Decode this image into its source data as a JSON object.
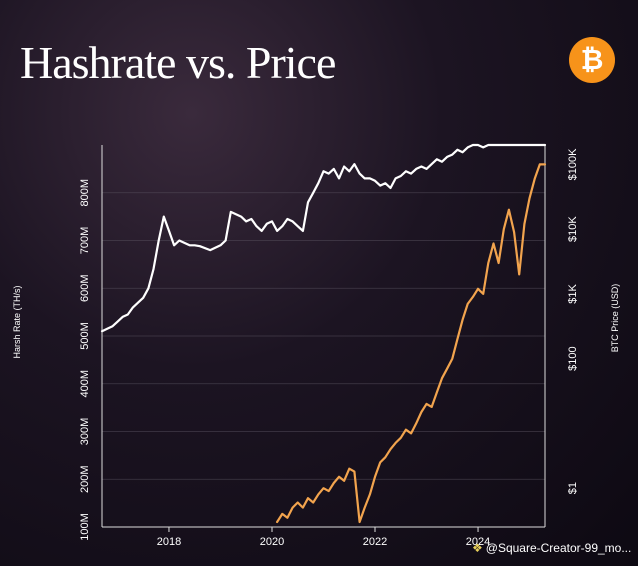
{
  "title": "Hashrate vs. Price",
  "colors": {
    "hashrate": "#ffffff",
    "price": "#f2a44e",
    "logo": "#f7931a",
    "grid": "#5b5563"
  },
  "watermark": "@Square-Creator-99_mo...",
  "chart_data": {
    "type": "line",
    "title": "Hashrate vs. Price",
    "ylabel": "Harsh Rate (TH/s)",
    "y2label": "BTC Price (USD)",
    "x_ticks": [
      "2018",
      "2020",
      "2022",
      "2024"
    ],
    "y_ticks": [
      "100M",
      "200M",
      "300M",
      "400M",
      "500M",
      "600M",
      "700M",
      "800M"
    ],
    "y2_ticks": [
      "$1",
      "$100",
      "$1K",
      "$10K",
      "$100K"
    ],
    "xlim": [
      2016.7,
      2025.3
    ],
    "ylim": [
      100,
      900
    ],
    "y2_scale": "log",
    "y2_range_log10": [
      -0.6,
      5.3
    ],
    "y2_tick_values": [
      1,
      100,
      1000,
      10000,
      100000
    ],
    "grid": "horizontal",
    "series": [
      {
        "name": "Hashrate",
        "axis": "left",
        "x": [
          2016.7,
          2016.8,
          2016.9,
          2017.0,
          2017.1,
          2017.2,
          2017.3,
          2017.4,
          2017.5,
          2017.6,
          2017.7,
          2017.8,
          2017.9,
          2018.0,
          2018.1,
          2018.2,
          2018.3,
          2018.4,
          2018.5,
          2018.6,
          2018.8,
          2019.0,
          2019.1,
          2019.2,
          2019.4,
          2019.5,
          2019.6,
          2019.7,
          2019.8,
          2019.9,
          2020.0,
          2020.1,
          2020.2,
          2020.3,
          2020.4,
          2020.5,
          2020.6,
          2020.7,
          2020.8,
          2020.9,
          2021.0,
          2021.1,
          2021.2,
          2021.3,
          2021.4,
          2021.5,
          2021.6,
          2021.7,
          2021.8,
          2021.9,
          2022.0,
          2022.1,
          2022.2,
          2022.3,
          2022.4,
          2022.5,
          2022.6,
          2022.7,
          2022.8,
          2022.9,
          2023.0,
          2023.1,
          2023.2,
          2023.3,
          2023.4,
          2023.5,
          2023.6,
          2023.7,
          2023.8,
          2023.9,
          2024.0,
          2024.1,
          2024.2,
          2024.3,
          2024.4,
          2024.5,
          2024.6,
          2024.7,
          2024.8,
          2024.9,
          2025.0,
          2025.1,
          2025.3
        ],
        "values": [
          510,
          515,
          520,
          530,
          540,
          545,
          560,
          570,
          580,
          600,
          640,
          700,
          750,
          720,
          690,
          700,
          695,
          690,
          690,
          688,
          680,
          690,
          700,
          760,
          750,
          740,
          745,
          730,
          720,
          735,
          740,
          720,
          730,
          745,
          740,
          730,
          720,
          780,
          800,
          820,
          845,
          840,
          850,
          830,
          855,
          845,
          860,
          840,
          830,
          830,
          825,
          815,
          820,
          810,
          830,
          835,
          845,
          840,
          850,
          855,
          850,
          860,
          870,
          865,
          875,
          880,
          890,
          885,
          895,
          900,
          905,
          895,
          900,
          910,
          905,
          900,
          910,
          905,
          910,
          915,
          910,
          915,
          920
        ]
      },
      {
        "name": "BTC Price",
        "axis": "right",
        "x": [
          2020.1,
          2020.2,
          2020.3,
          2020.4,
          2020.5,
          2020.6,
          2020.7,
          2020.8,
          2020.9,
          2021.0,
          2021.1,
          2021.2,
          2021.3,
          2021.4,
          2021.5,
          2021.6,
          2021.7,
          2021.8,
          2021.9,
          2022.0,
          2022.1,
          2022.2,
          2022.3,
          2022.4,
          2022.5,
          2022.6,
          2022.7,
          2022.8,
          2022.9,
          2023.0,
          2023.1,
          2023.2,
          2023.3,
          2023.4,
          2023.5,
          2023.6,
          2023.7,
          2023.8,
          2023.9,
          2024.0,
          2024.1,
          2024.2,
          2024.3,
          2024.4,
          2024.5,
          2024.6,
          2024.7,
          2024.8,
          2024.9,
          2025.0,
          2025.1,
          2025.2,
          2025.3
        ],
        "values": [
          0.3,
          0.4,
          0.35,
          0.5,
          0.6,
          0.5,
          0.7,
          0.6,
          0.8,
          1.0,
          0.9,
          1.2,
          1.5,
          1.3,
          2.0,
          1.8,
          0.3,
          0.5,
          0.8,
          1.5,
          2.5,
          3.0,
          4.0,
          5.0,
          6.0,
          8.0,
          7.0,
          10,
          15,
          20,
          18,
          30,
          50,
          70,
          100,
          200,
          400,
          700,
          900,
          1200,
          1000,
          3000,
          6000,
          3000,
          10000,
          20000,
          9000,
          2000,
          12000,
          30000,
          60000,
          100000,
          100000
        ]
      }
    ]
  }
}
